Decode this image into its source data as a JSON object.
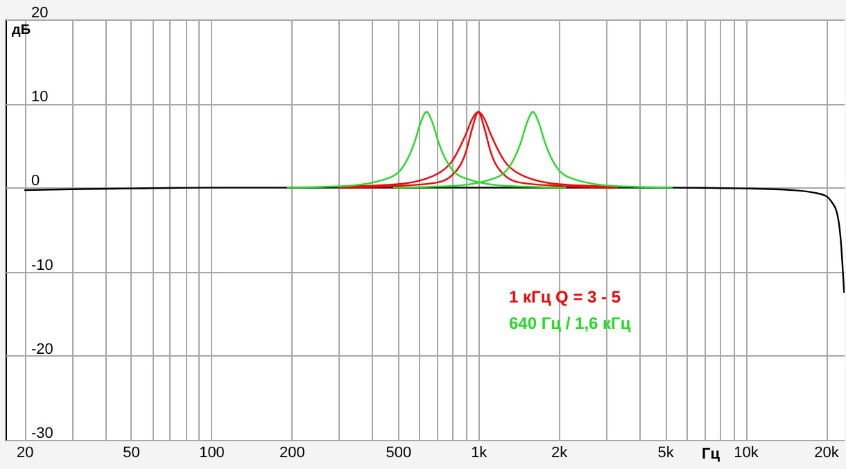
{
  "chart_data": {
    "type": "line",
    "xlabel": "Гц",
    "ylabel": "дБ",
    "log": "x",
    "grid": true,
    "marker": "none",
    "line_style": "solid",
    "xlim": [
      17,
      23500
    ],
    "ylim": [
      -30,
      20
    ],
    "xticks": [
      20,
      {
        "value": 30,
        "label": null
      },
      {
        "value": 40,
        "label": null
      },
      50,
      {
        "value": 60,
        "label": null
      },
      {
        "value": 70,
        "label": null
      },
      {
        "value": 80,
        "label": null
      },
      {
        "value": 90,
        "label": null
      },
      100,
      200,
      {
        "value": 300,
        "label": null
      },
      {
        "value": 400,
        "label": null
      },
      500,
      {
        "value": 600,
        "label": null
      },
      {
        "value": 700,
        "label": null
      },
      {
        "value": 800,
        "label": null
      },
      {
        "value": 900,
        "label": null
      },
      {
        "value": 1000,
        "label": "1k"
      },
      {
        "value": 2000,
        "label": "2k"
      },
      {
        "value": 3000,
        "label": null
      },
      {
        "value": 4000,
        "label": null
      },
      {
        "value": 5000,
        "label": "5k"
      },
      {
        "value": 6000,
        "label": null
      },
      {
        "value": 7000,
        "label": null
      },
      {
        "value": 8000,
        "label": null
      },
      {
        "value": 9000,
        "label": null
      },
      {
        "value": 10000,
        "label": "10k"
      },
      {
        "value": 20000,
        "label": "20k"
      }
    ],
    "yticks": [
      -30,
      -20,
      -10,
      0,
      10,
      20
    ],
    "annotations": [
      "1 кГц Q = 3 - 5",
      "640 Гц / 1,6 кГц"
    ],
    "series": [
      {
        "color": "#000000",
        "x": [
          20,
          30,
          50,
          100,
          1000,
          5000,
          10000,
          15000,
          18000,
          20000,
          21000,
          22000,
          22700,
          23400
        ],
        "values": [
          -0.3,
          -0.2,
          -0.1,
          0,
          0,
          0,
          -0.1,
          -0.3,
          -0.6,
          -1,
          -1.7,
          -3,
          -6,
          -12.5
        ]
      },
      {
        "color": "#ff0000",
        "x": [
          300,
          500,
          700,
          800,
          900,
          950,
          1000,
          1053,
          1111,
          1250,
          1429,
          2000,
          3333
        ],
        "values": [
          0.1,
          0.4,
          1.6,
          3.2,
          6.4,
          8.2,
          9,
          8.2,
          6.4,
          3.2,
          1.6,
          0.4,
          0.1
        ]
      },
      {
        "color": "#ff0000",
        "x": [
          300,
          500,
          700,
          800,
          900,
          950,
          1000,
          1053,
          1111,
          1250,
          1429,
          2000,
          3333
        ],
        "values": [
          0,
          0.2,
          0.6,
          1.5,
          4.3,
          7.1,
          9,
          7.1,
          4.3,
          1.5,
          0.6,
          0.2,
          0
        ]
      },
      {
        "color": "#22dd22",
        "x": [
          192,
          320,
          448,
          512,
          576,
          608,
          640,
          674,
          711,
          800,
          914,
          1280,
          2133
        ],
        "values": [
          0,
          0.2,
          1,
          2.1,
          5.3,
          7.7,
          9,
          7.7,
          5.3,
          2.1,
          1,
          0.2,
          0
        ]
      },
      {
        "color": "#22dd22",
        "x": [
          480,
          800,
          1120,
          1280,
          1440,
          1520,
          1600,
          1685,
          1778,
          2000,
          2286,
          3200,
          5333
        ],
        "values": [
          0,
          0.2,
          1,
          2.1,
          5.3,
          7.7,
          9,
          7.7,
          5.3,
          2.1,
          1,
          0.2,
          0
        ]
      }
    ]
  }
}
